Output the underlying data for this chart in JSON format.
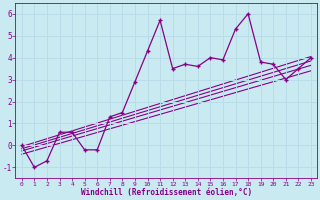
{
  "xlabel": "Windchill (Refroidissement éolien,°C)",
  "xlim": [
    -0.5,
    23.5
  ],
  "ylim": [
    -1.5,
    6.5
  ],
  "xticks": [
    0,
    1,
    2,
    3,
    4,
    5,
    6,
    7,
    8,
    9,
    10,
    11,
    12,
    13,
    14,
    15,
    16,
    17,
    18,
    19,
    20,
    21,
    22,
    23
  ],
  "yticks": [
    -1,
    0,
    1,
    2,
    3,
    4,
    5,
    6
  ],
  "background_color": "#c8eaf0",
  "grid_color": "#aad4dc",
  "line_color": "#880088",
  "main_series_x": [
    0,
    1,
    2,
    3,
    4,
    5,
    6,
    7,
    8,
    9,
    10,
    11,
    12,
    13,
    14,
    15,
    16,
    17,
    18,
    19,
    20,
    21,
    22,
    23
  ],
  "main_series_y": [
    0,
    -1.0,
    -0.7,
    0.6,
    0.6,
    -0.2,
    -0.2,
    1.3,
    1.5,
    2.9,
    4.3,
    5.7,
    3.5,
    3.7,
    3.6,
    4.0,
    3.9,
    5.3,
    6.0,
    3.8,
    3.7,
    3.0,
    3.5,
    4.0
  ],
  "trend_lines": [
    {
      "x": [
        0,
        23
      ],
      "y": [
        -0.05,
        4.05
      ]
    },
    {
      "x": [
        0,
        23
      ],
      "y": [
        -0.15,
        3.85
      ]
    },
    {
      "x": [
        0,
        23
      ],
      "y": [
        -0.25,
        3.65
      ]
    },
    {
      "x": [
        0,
        23
      ],
      "y": [
        -0.4,
        3.4
      ]
    }
  ]
}
